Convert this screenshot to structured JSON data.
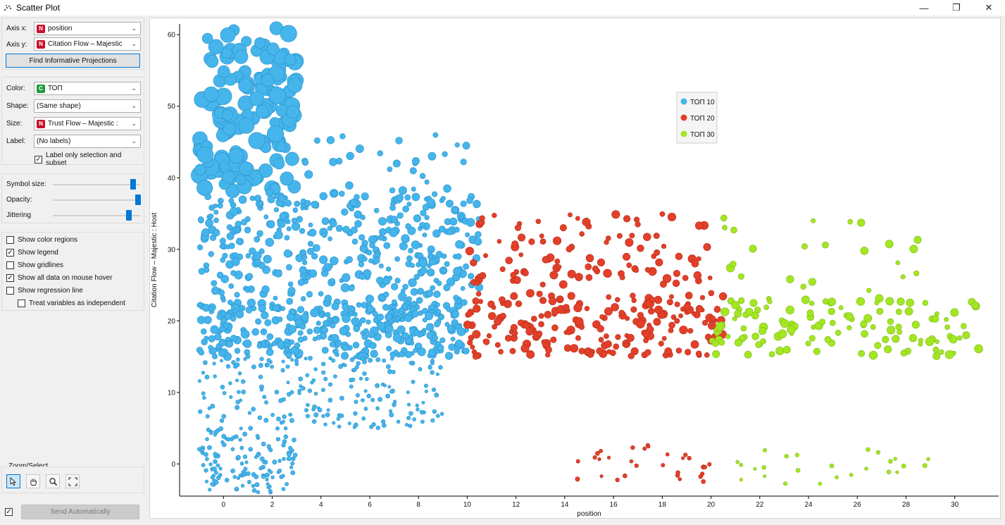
{
  "window": {
    "title": "Scatter Plot",
    "minimize": "—",
    "restore": "❐",
    "close": "✕"
  },
  "axes_panel": {
    "axis_x_label": "Axis x:",
    "axis_x_value": "position",
    "axis_x_tag": "N",
    "axis_y_label": "Axis y:",
    "axis_y_value": "Citation Flow  –  Majestic",
    "axis_y_tag": "N",
    "find_button": "Find Informative Projections"
  },
  "attributes_panel": {
    "color_label": "Color:",
    "color_value": "ТОП",
    "color_tag": "C",
    "shape_label": "Shape:",
    "shape_value": "(Same shape)",
    "size_label": "Size:",
    "size_value": "Trust Flow  –  Majestic  :",
    "size_tag": "N",
    "label_label": "Label:",
    "label_value": "(No labels)",
    "label_only_selection": "Label only selection and subset",
    "label_only_selection_checked": true
  },
  "sliders": {
    "symbol_size_label": "Symbol size:",
    "symbol_size": 0.92,
    "opacity_label": "Opacity:",
    "opacity": 1.0,
    "jittering_label": "Jittering",
    "jittering": 0.88
  },
  "options": [
    {
      "label": "Show color regions",
      "checked": false
    },
    {
      "label": "Show legend",
      "checked": true
    },
    {
      "label": "Show gridlines",
      "checked": false
    },
    {
      "label": "Show all data on mouse hover",
      "checked": true
    },
    {
      "label": "Show regression line",
      "checked": false
    },
    {
      "label": "Treat variables as independent",
      "checked": false
    }
  ],
  "zoom": {
    "label": "Zoom/Select",
    "tools": [
      "pointer-icon",
      "pan-hand-icon",
      "zoom-icon",
      "fit-icon"
    ]
  },
  "send": {
    "label": "Send Automatically",
    "checked": true
  },
  "colors": {
    "top10": "#45b5ec",
    "top20": "#e2402a",
    "top30": "#a3e623",
    "accent": "#0078d7"
  },
  "chart_data": {
    "type": "scatter",
    "title": "",
    "xlabel": "position",
    "ylabel": "Citation Flow – Majestic : Host",
    "xlim": [
      -1.8,
      31.8
    ],
    "ylim": [
      -4.5,
      61.5
    ],
    "xticks": [
      0,
      2,
      4,
      6,
      8,
      10,
      12,
      14,
      16,
      18,
      20,
      22,
      24,
      26,
      28,
      30
    ],
    "yticks": [
      0,
      10,
      20,
      30,
      40,
      50,
      60
    ],
    "legend_position": "top-center",
    "series": [
      {
        "name": "ТОП 10",
        "color": "#45b5ec",
        "x_range": [
          -1,
          10.5
        ],
        "clusters": [
          {
            "x": [
              -1,
              3
            ],
            "y": [
              38,
              61
            ],
            "size": "large",
            "count": 150
          },
          {
            "x": [
              -1,
              10.5
            ],
            "y": [
              22,
              38
            ],
            "size": "medium",
            "count": 400
          },
          {
            "x": [
              -1,
              10
            ],
            "y": [
              15,
              22
            ],
            "size": "medium",
            "count": 300
          },
          {
            "x": [
              -1,
              9
            ],
            "y": [
              5,
              15
            ],
            "size": "small",
            "count": 200
          },
          {
            "x": [
              -1,
              3
            ],
            "y": [
              -4,
              5
            ],
            "size": "small",
            "count": 130
          },
          {
            "x": [
              3,
              10
            ],
            "y": [
              38,
              46
            ],
            "size": "medium",
            "count": 30
          }
        ]
      },
      {
        "name": "ТОП 20",
        "color": "#e2402a",
        "x_range": [
          10,
          20.5
        ],
        "clusters": [
          {
            "x": [
              10,
              20
            ],
            "y": [
              25,
              35
            ],
            "size": "medium",
            "count": 100
          },
          {
            "x": [
              10,
              20.5
            ],
            "y": [
              15,
              24
            ],
            "size": "medium",
            "count": 200
          },
          {
            "x": [
              14,
              20
            ],
            "y": [
              -2.5,
              3
            ],
            "size": "small",
            "count": 30
          }
        ]
      },
      {
        "name": "ТОП 30",
        "color": "#a3e623",
        "x_range": [
          20,
          31.5
        ],
        "clusters": [
          {
            "x": [
              20.5,
              29
            ],
            "y": [
              22,
              35
            ],
            "size": "medium",
            "count": 30
          },
          {
            "x": [
              20,
              31
            ],
            "y": [
              15,
              23
            ],
            "size": "medium",
            "count": 120
          },
          {
            "x": [
              21,
              29
            ],
            "y": [
              -3,
              2.5
            ],
            "size": "small",
            "count": 25
          }
        ]
      }
    ]
  }
}
